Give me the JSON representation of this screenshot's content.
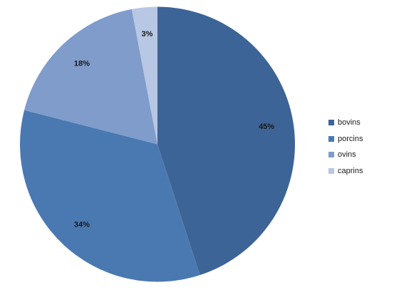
{
  "chart_data": {
    "type": "pie",
    "title": "",
    "categories": [
      "bovins",
      "porcins",
      "ovins",
      "caprins"
    ],
    "values": [
      45,
      34,
      18,
      3
    ],
    "labels": [
      "45%",
      "34%",
      "18%",
      "3%"
    ],
    "colors": [
      "#3d6496",
      "#4a79b2",
      "#7f9ccb",
      "#b8c7e3"
    ],
    "start_angle_deg": 0,
    "direction": "clockwise",
    "legend_position": "right"
  }
}
